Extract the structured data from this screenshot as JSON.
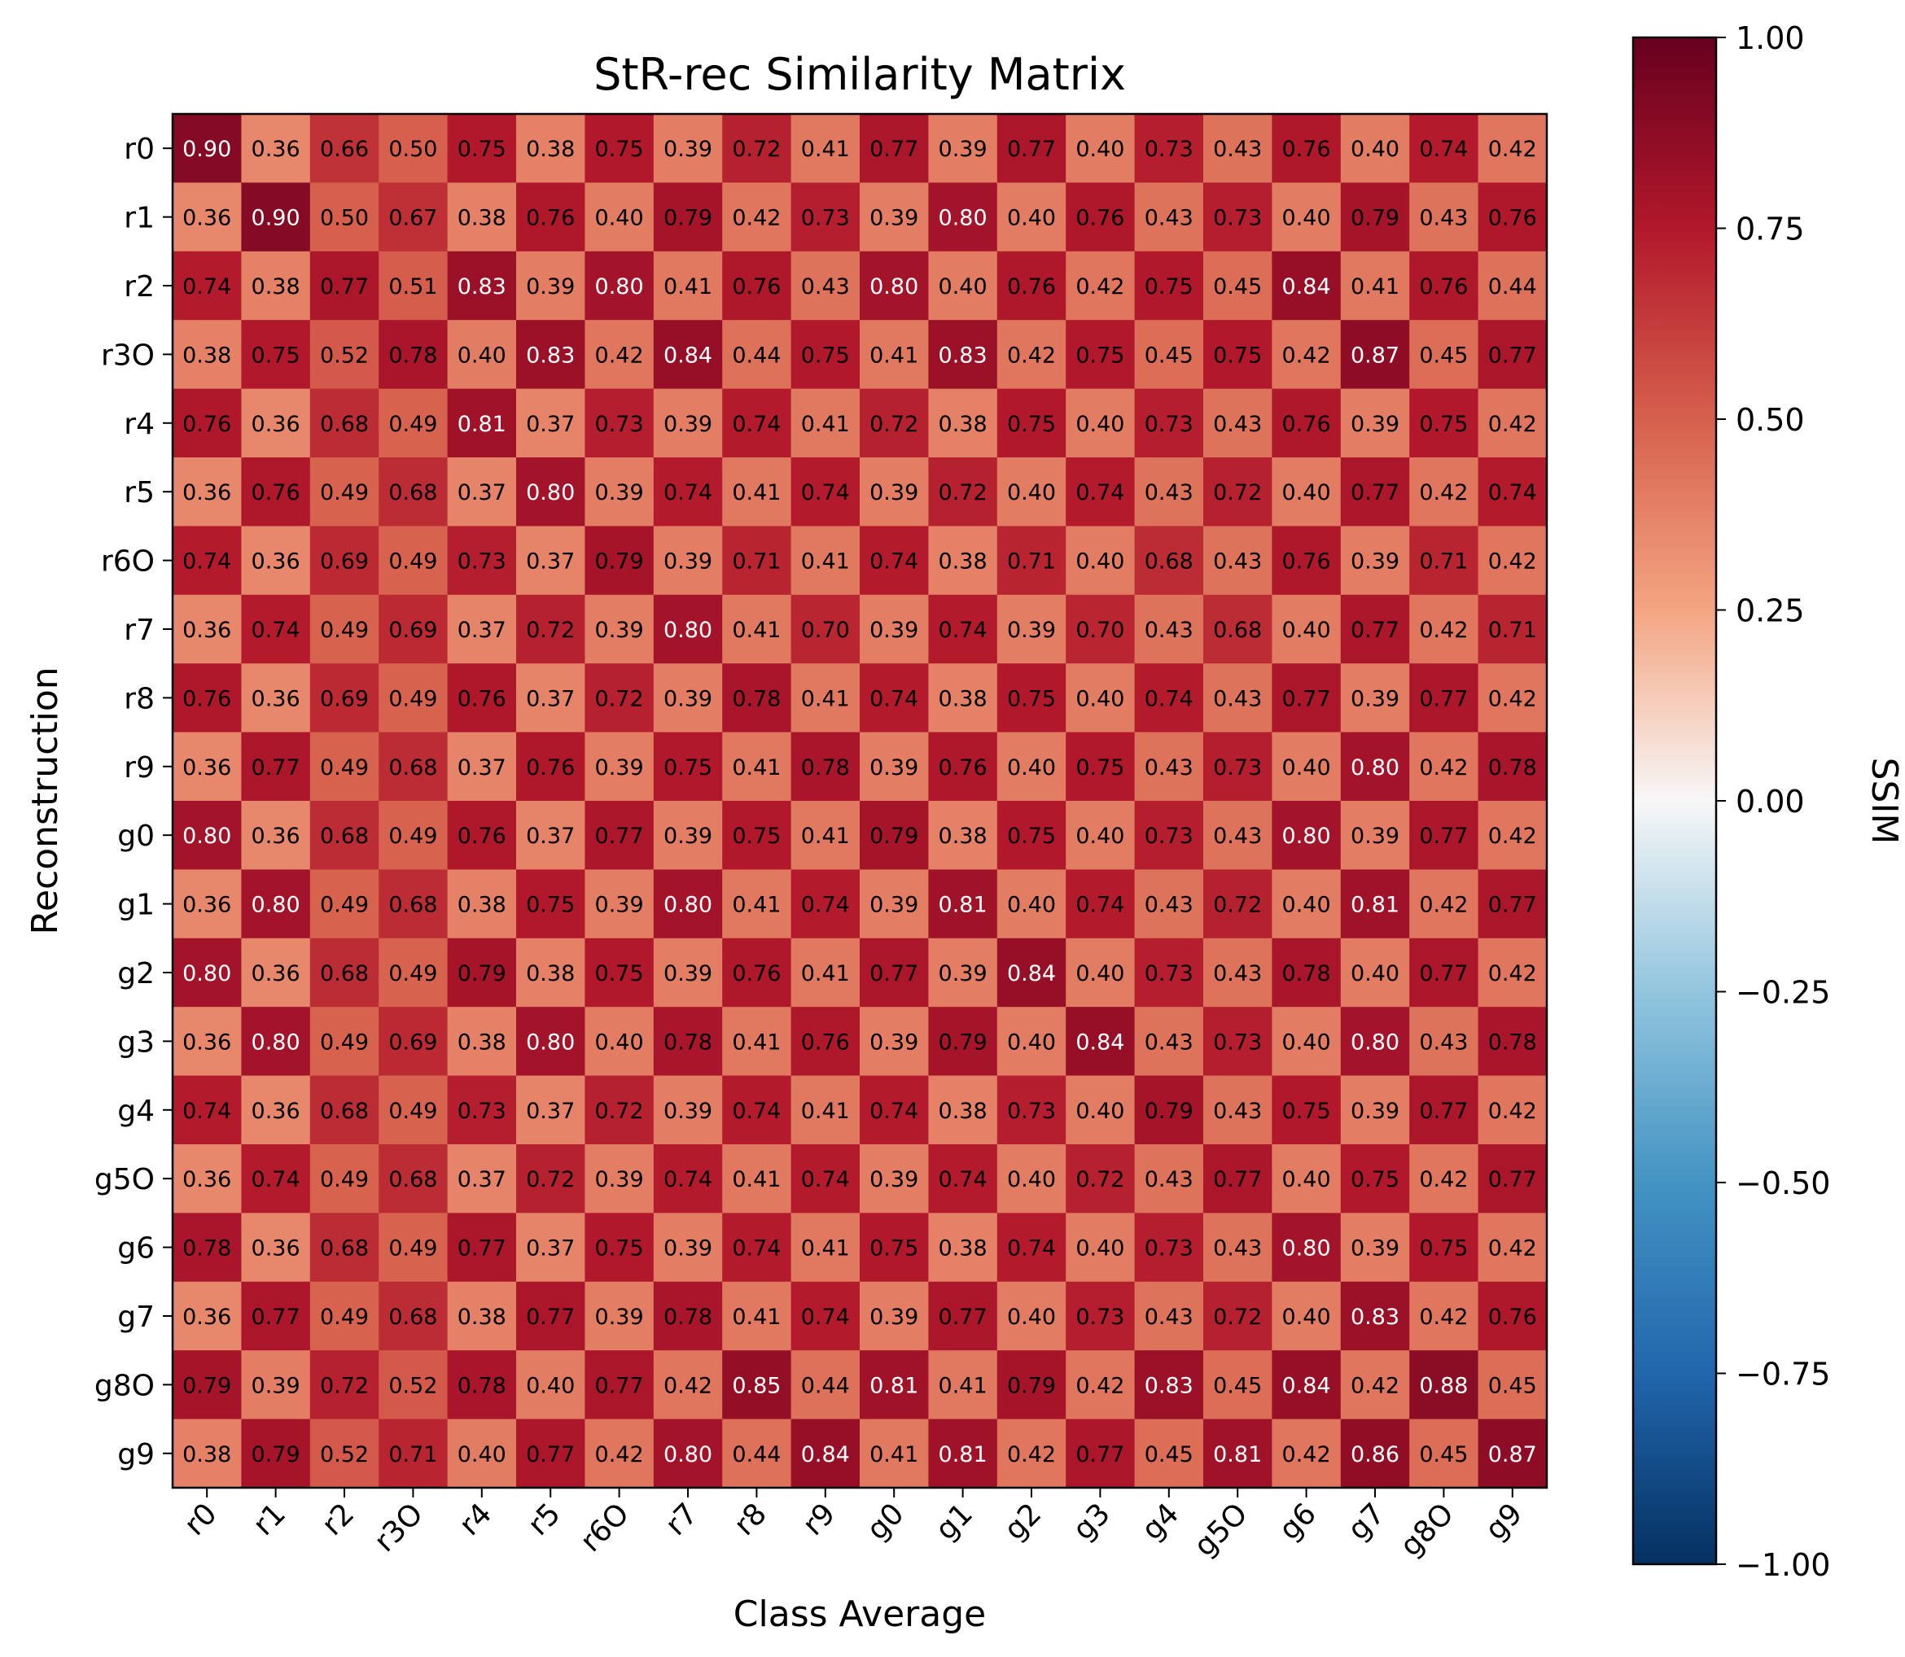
{
  "chart_data": {
    "type": "heatmap",
    "title": "StR-rec Similarity Matrix",
    "xlabel": "Class Average",
    "ylabel": "Reconstruction",
    "colorbar_label": "SSIM",
    "colormap": "RdBu_r",
    "vmin": -1.0,
    "vmax": 1.0,
    "colorbar_ticks": [
      "1.00",
      "0.75",
      "0.50",
      "0.25",
      "0.00",
      "−0.25",
      "−0.50",
      "−0.75",
      "−1.00"
    ],
    "colorbar_tick_values": [
      1.0,
      0.75,
      0.5,
      0.25,
      0.0,
      -0.25,
      -0.5,
      -0.75,
      -1.0
    ],
    "x_categories": [
      "r0",
      "r1",
      "r2",
      "r3O",
      "r4",
      "r5",
      "r6O",
      "r7",
      "r8",
      "r9",
      "g0",
      "g1",
      "g2",
      "g3",
      "g4",
      "g5O",
      "g6",
      "g7",
      "g8O",
      "g9"
    ],
    "y_categories": [
      "r0",
      "r1",
      "r2",
      "r3O",
      "r4",
      "r5",
      "r6O",
      "r7",
      "r8",
      "r9",
      "g0",
      "g1",
      "g2",
      "g3",
      "g4",
      "g5O",
      "g6",
      "g7",
      "g8O",
      "g9"
    ],
    "values": [
      [
        0.9,
        0.36,
        0.66,
        0.5,
        0.75,
        0.38,
        0.75,
        0.39,
        0.72,
        0.41,
        0.77,
        0.39,
        0.77,
        0.4,
        0.73,
        0.43,
        0.76,
        0.4,
        0.74,
        0.42
      ],
      [
        0.36,
        0.9,
        0.5,
        0.67,
        0.38,
        0.76,
        0.4,
        0.79,
        0.42,
        0.73,
        0.39,
        0.8,
        0.4,
        0.76,
        0.43,
        0.73,
        0.4,
        0.79,
        0.43,
        0.76
      ],
      [
        0.74,
        0.38,
        0.77,
        0.51,
        0.83,
        0.39,
        0.8,
        0.41,
        0.76,
        0.43,
        0.8,
        0.4,
        0.76,
        0.42,
        0.75,
        0.45,
        0.84,
        0.41,
        0.76,
        0.44
      ],
      [
        0.38,
        0.75,
        0.52,
        0.78,
        0.4,
        0.83,
        0.42,
        0.84,
        0.44,
        0.75,
        0.41,
        0.83,
        0.42,
        0.75,
        0.45,
        0.75,
        0.42,
        0.87,
        0.45,
        0.77
      ],
      [
        0.76,
        0.36,
        0.68,
        0.49,
        0.81,
        0.37,
        0.73,
        0.39,
        0.74,
        0.41,
        0.72,
        0.38,
        0.75,
        0.4,
        0.73,
        0.43,
        0.76,
        0.39,
        0.75,
        0.42
      ],
      [
        0.36,
        0.76,
        0.49,
        0.68,
        0.37,
        0.8,
        0.39,
        0.74,
        0.41,
        0.74,
        0.39,
        0.72,
        0.4,
        0.74,
        0.43,
        0.72,
        0.4,
        0.77,
        0.42,
        0.74
      ],
      [
        0.74,
        0.36,
        0.69,
        0.49,
        0.73,
        0.37,
        0.79,
        0.39,
        0.71,
        0.41,
        0.74,
        0.38,
        0.71,
        0.4,
        0.68,
        0.43,
        0.76,
        0.39,
        0.71,
        0.42
      ],
      [
        0.36,
        0.74,
        0.49,
        0.69,
        0.37,
        0.72,
        0.39,
        0.8,
        0.41,
        0.7,
        0.39,
        0.74,
        0.39,
        0.7,
        0.43,
        0.68,
        0.4,
        0.77,
        0.42,
        0.71
      ],
      [
        0.76,
        0.36,
        0.69,
        0.49,
        0.76,
        0.37,
        0.72,
        0.39,
        0.78,
        0.41,
        0.74,
        0.38,
        0.75,
        0.4,
        0.74,
        0.43,
        0.77,
        0.39,
        0.77,
        0.42
      ],
      [
        0.36,
        0.77,
        0.49,
        0.68,
        0.37,
        0.76,
        0.39,
        0.75,
        0.41,
        0.78,
        0.39,
        0.76,
        0.4,
        0.75,
        0.43,
        0.73,
        0.4,
        0.8,
        0.42,
        0.78
      ],
      [
        0.8,
        0.36,
        0.68,
        0.49,
        0.76,
        0.37,
        0.77,
        0.39,
        0.75,
        0.41,
        0.79,
        0.38,
        0.75,
        0.4,
        0.73,
        0.43,
        0.8,
        0.39,
        0.77,
        0.42
      ],
      [
        0.36,
        0.8,
        0.49,
        0.68,
        0.38,
        0.75,
        0.39,
        0.8,
        0.41,
        0.74,
        0.39,
        0.81,
        0.4,
        0.74,
        0.43,
        0.72,
        0.4,
        0.81,
        0.42,
        0.77
      ],
      [
        0.8,
        0.36,
        0.68,
        0.49,
        0.79,
        0.38,
        0.75,
        0.39,
        0.76,
        0.41,
        0.77,
        0.39,
        0.84,
        0.4,
        0.73,
        0.43,
        0.78,
        0.4,
        0.77,
        0.42
      ],
      [
        0.36,
        0.8,
        0.49,
        0.69,
        0.38,
        0.8,
        0.4,
        0.78,
        0.41,
        0.76,
        0.39,
        0.79,
        0.4,
        0.84,
        0.43,
        0.73,
        0.4,
        0.8,
        0.43,
        0.78
      ],
      [
        0.74,
        0.36,
        0.68,
        0.49,
        0.73,
        0.37,
        0.72,
        0.39,
        0.74,
        0.41,
        0.74,
        0.38,
        0.73,
        0.4,
        0.79,
        0.43,
        0.75,
        0.39,
        0.77,
        0.42
      ],
      [
        0.36,
        0.74,
        0.49,
        0.68,
        0.37,
        0.72,
        0.39,
        0.74,
        0.41,
        0.74,
        0.39,
        0.74,
        0.4,
        0.72,
        0.43,
        0.77,
        0.4,
        0.75,
        0.42,
        0.77
      ],
      [
        0.78,
        0.36,
        0.68,
        0.49,
        0.77,
        0.37,
        0.75,
        0.39,
        0.74,
        0.41,
        0.75,
        0.38,
        0.74,
        0.4,
        0.73,
        0.43,
        0.8,
        0.39,
        0.75,
        0.42
      ],
      [
        0.36,
        0.77,
        0.49,
        0.68,
        0.38,
        0.77,
        0.39,
        0.78,
        0.41,
        0.74,
        0.39,
        0.77,
        0.4,
        0.73,
        0.43,
        0.72,
        0.4,
        0.83,
        0.42,
        0.76
      ],
      [
        0.79,
        0.39,
        0.72,
        0.52,
        0.78,
        0.4,
        0.77,
        0.42,
        0.85,
        0.44,
        0.81,
        0.41,
        0.79,
        0.42,
        0.83,
        0.45,
        0.84,
        0.42,
        0.88,
        0.45
      ],
      [
        0.38,
        0.79,
        0.52,
        0.71,
        0.4,
        0.77,
        0.42,
        0.8,
        0.44,
        0.84,
        0.41,
        0.81,
        0.42,
        0.77,
        0.45,
        0.81,
        0.42,
        0.86,
        0.45,
        0.87
      ]
    ]
  }
}
